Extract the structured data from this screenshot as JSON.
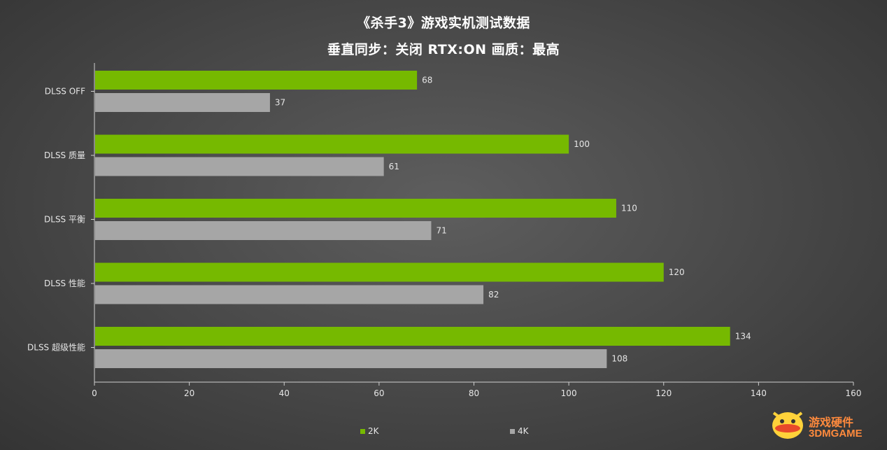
{
  "title": "《杀手3》游戏实机测试数据",
  "subtitle": "垂直同步：关闭 RTX:ON 画质：最高",
  "watermark": {
    "cn": "游戏硬件",
    "en": "3DMGAME"
  },
  "colors": {
    "series_2k": "#76b900",
    "series_4k": "#a6a6a6",
    "text": "#e6e6e6",
    "axis": "#cfcfcf"
  },
  "chart_data": {
    "type": "bar",
    "orientation": "horizontal",
    "categories": [
      "DLSS OFF",
      "DLSS 质量",
      "DLSS 平衡",
      "DLSS 性能",
      "DLSS 超级性能"
    ],
    "series": [
      {
        "name": "2K",
        "values": [
          68,
          100,
          110,
          120,
          134
        ]
      },
      {
        "name": "4K",
        "values": [
          37,
          61,
          71,
          82,
          108
        ]
      }
    ],
    "xlim": [
      0,
      160
    ],
    "xticks": [
      0,
      20,
      40,
      60,
      80,
      100,
      120,
      140,
      160
    ],
    "xlabel": "",
    "ylabel": "",
    "grid": false,
    "legend": "bottom-center",
    "data_labels": true
  }
}
